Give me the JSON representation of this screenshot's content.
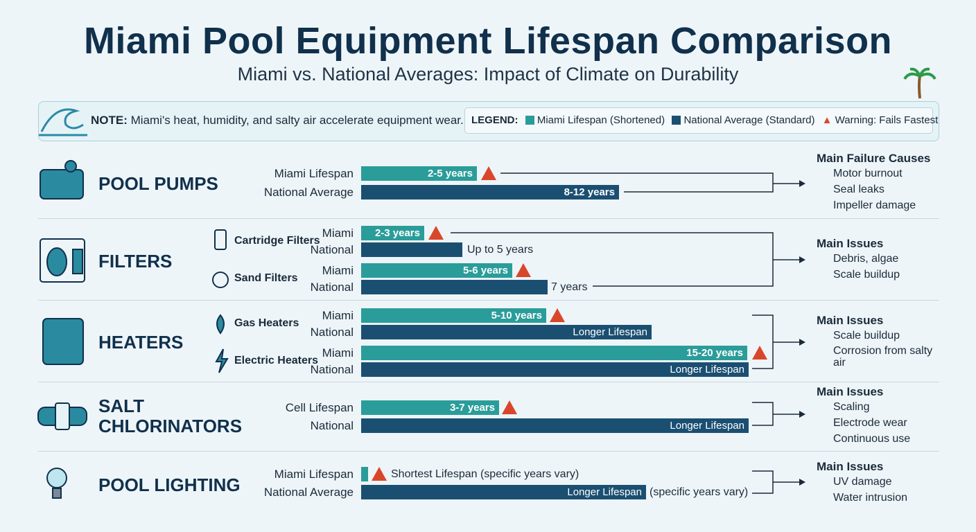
{
  "header": {
    "title": "Miami Pool Equipment Lifespan Comparison",
    "subtitle": "Miami vs. National Averages: Impact of Climate on Durability"
  },
  "note": {
    "label": "NOTE:",
    "text": "Miami's heat, humidity, and salty air accelerate equipment wear."
  },
  "legend": {
    "label": "LEGEND:",
    "items": [
      "Miami Lifespan (Shortened)",
      "National Average (Standard)",
      "Warning: Fails Fastest"
    ]
  },
  "sections": [
    {
      "title": "POOL PUMPS",
      "rows": [
        {
          "label": "Miami Lifespan",
          "bar": "2-5 years"
        },
        {
          "label": "National Average",
          "bar": "8-12 years"
        }
      ],
      "issues_title": "Main Failure Causes",
      "issues": [
        "Motor burnout",
        "Seal leaks",
        "Impeller damage"
      ]
    },
    {
      "title": "FILTERS",
      "groups": [
        {
          "name": "Cartridge Filters",
          "rows": [
            {
              "label": "Miami",
              "bar": "2-3 years"
            },
            {
              "label": "National",
              "bar": "Up to 5 years"
            }
          ]
        },
        {
          "name": "Sand Filters",
          "rows": [
            {
              "label": "Miami",
              "bar": "5-6 years"
            },
            {
              "label": "National",
              "bar": "7 years"
            }
          ]
        }
      ],
      "issues_title": "Main Issues",
      "issues": [
        "Debris, algae",
        "Scale buildup"
      ]
    },
    {
      "title": "HEATERS",
      "groups": [
        {
          "name": "Gas Heaters",
          "rows": [
            {
              "label": "Miami",
              "bar": "5-10 years"
            },
            {
              "label": "National",
              "bar": "Longer Lifespan"
            }
          ]
        },
        {
          "name": "Electric Heaters",
          "rows": [
            {
              "label": "Miami",
              "bar": "15-20 years"
            },
            {
              "label": "National",
              "bar": "Longer Lifespan"
            }
          ]
        }
      ],
      "issues_title": "Main Issues",
      "issues": [
        "Scale buildup",
        "Corrosion from salty air"
      ]
    },
    {
      "title": "SALT CHLORINATORS",
      "rows": [
        {
          "label": "Cell Lifespan",
          "bar": "3-7 years"
        },
        {
          "label": "National",
          "bar": "Longer Lifespan"
        }
      ],
      "issues_title": "Main Issues",
      "issues": [
        "Scaling",
        "Electrode wear",
        "Continuous use"
      ]
    },
    {
      "title": "POOL LIGHTING",
      "rows": [
        {
          "label": "Miami Lifespan",
          "bar": "Shortest Lifespan (specific years vary)"
        },
        {
          "label": "National Average",
          "bar": "Longer Lifespan",
          "note": "(specific years vary)"
        }
      ],
      "issues_title": "Main Issues",
      "issues": [
        "UV damage",
        "Water intrusion"
      ]
    }
  ]
}
